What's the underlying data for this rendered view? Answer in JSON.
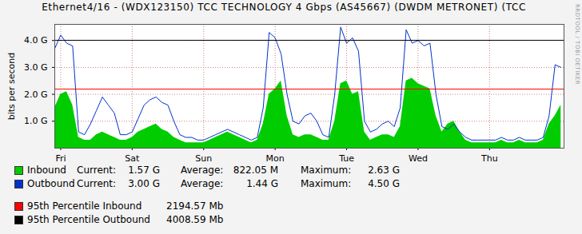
{
  "chart_data": {
    "type": "area_line",
    "title": "Ethernet4/16 - (WDX123150) TCC TECHNOLOGY 4 Gbps (AS45667) (DWDM METRONET) (TCC",
    "y_label": "bits per second",
    "watermark": "RRDTOOL / TOBI OETIKER",
    "grid": true,
    "xlim": [
      -2,
      169
    ],
    "xticks": [
      {
        "value": 0,
        "label": "Fri"
      },
      {
        "value": 24,
        "label": "Sat"
      },
      {
        "value": 48,
        "label": "Sun"
      },
      {
        "value": 72,
        "label": "Mon"
      },
      {
        "value": 96,
        "label": "Tue"
      },
      {
        "value": 120,
        "label": "Wed"
      },
      {
        "value": 144,
        "label": "Thu"
      }
    ],
    "ylim": [
      0,
      4.6
    ],
    "yticks": [
      {
        "value": 1,
        "label": "1.0 G"
      },
      {
        "value": 2,
        "label": "2.0 G"
      },
      {
        "value": 3,
        "label": "3.0 G"
      },
      {
        "value": 4,
        "label": "4.0 G"
      }
    ],
    "x": [
      -2,
      0,
      2,
      4,
      6,
      8,
      10,
      12,
      14,
      16,
      18,
      20,
      22,
      24,
      26,
      28,
      30,
      32,
      34,
      36,
      38,
      40,
      42,
      44,
      46,
      48,
      50,
      52,
      54,
      56,
      58,
      60,
      62,
      64,
      66,
      68,
      70,
      72,
      74,
      76,
      78,
      80,
      82,
      84,
      86,
      88,
      90,
      92,
      94,
      96,
      98,
      100,
      102,
      104,
      106,
      108,
      110,
      112,
      114,
      116,
      118,
      120,
      122,
      124,
      126,
      128,
      130,
      132,
      134,
      136,
      138,
      140,
      142,
      144,
      146,
      148,
      150,
      152,
      154,
      156,
      158,
      160,
      162,
      164,
      166,
      168
    ],
    "stat_labels": [
      "Current:",
      "Average:",
      "Maximum:"
    ],
    "series": [
      {
        "name": "Inbound",
        "type": "area",
        "color": "#00cc00",
        "stats": [
          "1.57 G",
          "822.05 M",
          "2.63 G"
        ],
        "values": [
          1.5,
          2.0,
          2.1,
          1.6,
          0.4,
          0.3,
          0.3,
          0.5,
          0.6,
          0.5,
          0.4,
          0.3,
          0.3,
          0.4,
          0.6,
          0.7,
          0.8,
          0.9,
          0.7,
          0.6,
          0.4,
          0.3,
          0.2,
          0.2,
          0.2,
          0.2,
          0.3,
          0.4,
          0.5,
          0.6,
          0.5,
          0.4,
          0.3,
          0.2,
          0.3,
          0.9,
          2.0,
          2.2,
          2.5,
          1.2,
          0.5,
          0.4,
          0.5,
          0.5,
          0.4,
          0.3,
          0.3,
          1.0,
          2.4,
          2.5,
          2.0,
          2.1,
          0.6,
          0.3,
          0.4,
          0.5,
          0.5,
          0.4,
          0.8,
          2.5,
          2.6,
          2.4,
          2.3,
          2.2,
          1.2,
          0.6,
          0.9,
          1.0,
          0.6,
          0.3,
          0.2,
          0.2,
          0.2,
          0.2,
          0.2,
          0.3,
          0.2,
          0.2,
          0.3,
          0.2,
          0.2,
          0.2,
          0.3,
          0.9,
          1.2,
          1.6
        ]
      },
      {
        "name": "Outbound",
        "type": "line",
        "color": "#0033cc",
        "stats": [
          "3.00 G",
          "1.44 G",
          "4.50 G"
        ],
        "values": [
          3.7,
          4.2,
          3.9,
          3.8,
          0.6,
          0.5,
          0.9,
          1.4,
          1.9,
          1.6,
          1.3,
          0.5,
          0.5,
          0.6,
          1.1,
          1.6,
          1.8,
          1.9,
          1.7,
          1.6,
          1.0,
          0.5,
          0.4,
          0.4,
          0.3,
          0.3,
          0.4,
          0.5,
          0.6,
          0.7,
          0.6,
          0.5,
          0.4,
          0.3,
          0.4,
          1.5,
          4.3,
          4.1,
          3.5,
          2.0,
          1.0,
          0.9,
          1.2,
          1.3,
          1.0,
          0.5,
          0.4,
          2.0,
          4.5,
          3.9,
          4.1,
          3.6,
          1.0,
          0.6,
          0.7,
          0.9,
          1.0,
          0.8,
          1.5,
          4.4,
          3.9,
          4.0,
          3.8,
          3.9,
          2.0,
          0.8,
          0.7,
          0.9,
          0.6,
          0.4,
          0.3,
          0.3,
          0.3,
          0.3,
          0.3,
          0.4,
          0.3,
          0.3,
          0.4,
          0.3,
          0.3,
          0.3,
          0.4,
          1.2,
          3.1,
          3.0
        ]
      }
    ],
    "percentiles": [
      {
        "name": "95th Percentile Inbound",
        "value": 2.19457,
        "label": "2194.57 Mb",
        "color": "#ff0000"
      },
      {
        "name": "95th Percentile Outbound",
        "value": 4.00859,
        "label": "4008.59 Mb",
        "color": "#000000"
      }
    ]
  }
}
